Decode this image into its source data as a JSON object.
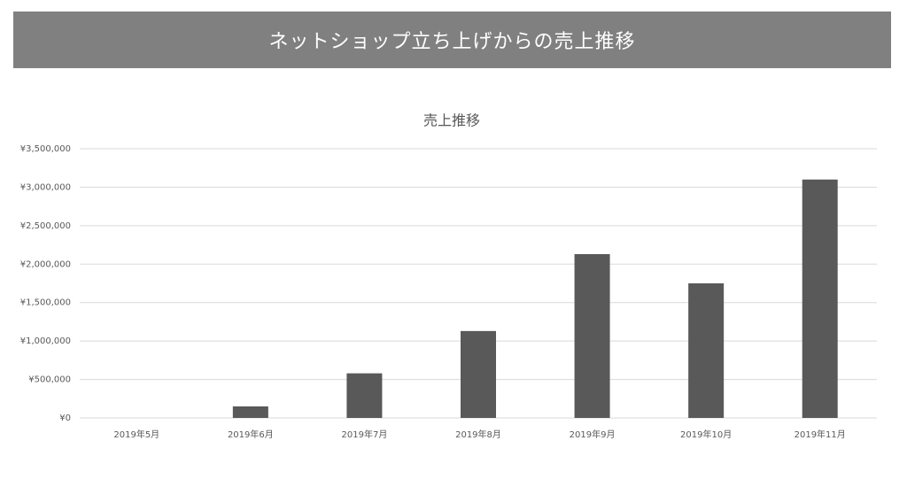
{
  "header": {
    "title": "ネットショップ立ち上げからの売上推移"
  },
  "chart_data": {
    "type": "bar",
    "title": "売上推移",
    "categories": [
      "2019年5月",
      "2019年6月",
      "2019年7月",
      "2019年8月",
      "2019年9月",
      "2019年10月",
      "2019年11月"
    ],
    "values": [
      0,
      150000,
      580000,
      1130000,
      2130000,
      1750000,
      3100000
    ],
    "color": "#595959",
    "ylim": [
      0,
      3500000
    ],
    "yticks": [
      {
        "value": 0,
        "label": "¥0"
      },
      {
        "value": 500000,
        "label": "¥500,000"
      },
      {
        "value": 1000000,
        "label": "¥1,000,000"
      },
      {
        "value": 1500000,
        "label": "¥1,500,000"
      },
      {
        "value": 2000000,
        "label": "¥2,000,000"
      },
      {
        "value": 2500000,
        "label": "¥2,500,000"
      },
      {
        "value": 3000000,
        "label": "¥3,000,000"
      },
      {
        "value": 3500000,
        "label": "¥3,500,000"
      }
    ],
    "grid": true
  }
}
